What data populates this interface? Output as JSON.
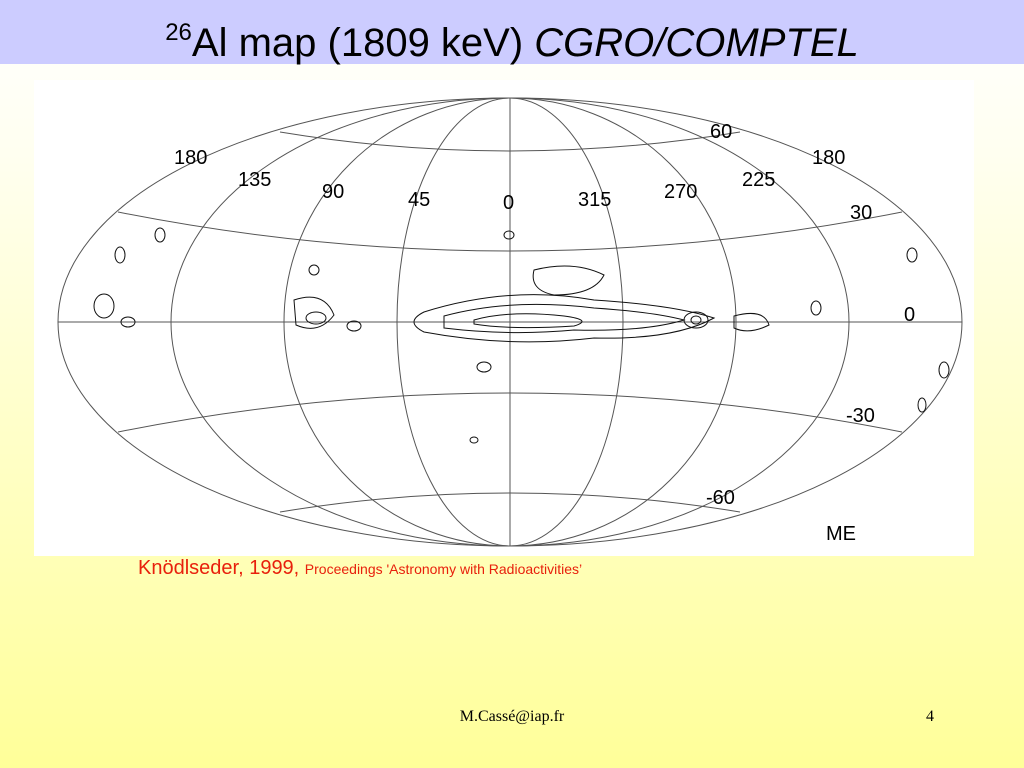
{
  "header": {
    "title_superscript": "26",
    "title_main": "Al map (1809 keV) ",
    "title_italic": "CGRO/COMPTEL"
  },
  "map": {
    "longitude_labels": [
      "180",
      "135",
      "90",
      "45",
      "0",
      "315",
      "270",
      "225",
      "180"
    ],
    "latitude_labels": [
      "60",
      "30",
      "0",
      "-30",
      "-60"
    ],
    "instrument": "ME"
  },
  "caption": {
    "author": "Knödlseder, 1999, ",
    "source": "Proceedings 'Astronomy with Radioactivities’"
  },
  "footer": {
    "email": "M.Cassé@iap.fr",
    "page": "4"
  }
}
